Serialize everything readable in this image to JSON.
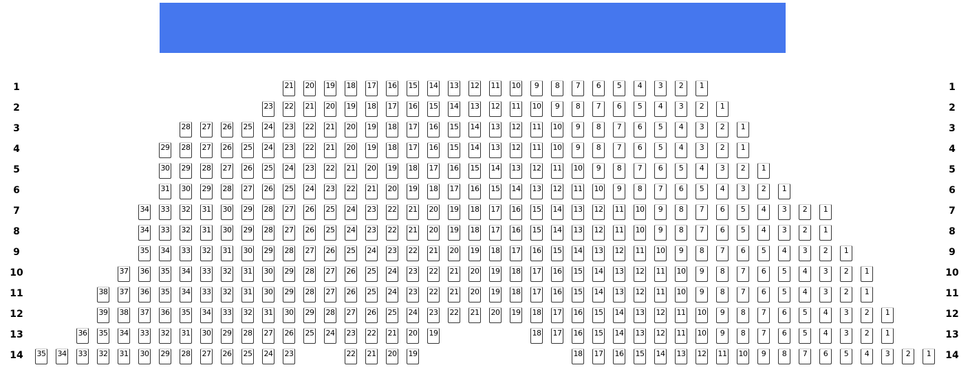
{
  "screen": {
    "color": "#4577ee"
  },
  "rows": [
    {
      "label": "1",
      "blocks": [
        [
          21,
          1
        ]
      ]
    },
    {
      "label": "2",
      "blocks": [
        [
          23,
          1
        ]
      ]
    },
    {
      "label": "3",
      "blocks": [
        [
          28,
          1
        ]
      ]
    },
    {
      "label": "4",
      "blocks": [
        [
          29,
          1
        ]
      ]
    },
    {
      "label": "5",
      "blocks": [
        [
          30,
          1
        ]
      ]
    },
    {
      "label": "6",
      "blocks": [
        [
          31,
          1
        ]
      ]
    },
    {
      "label": "7",
      "blocks": [
        [
          34,
          1
        ]
      ]
    },
    {
      "label": "8",
      "blocks": [
        [
          34,
          1
        ]
      ]
    },
    {
      "label": "9",
      "blocks": [
        [
          35,
          1
        ]
      ]
    },
    {
      "label": "10",
      "blocks": [
        [
          37,
          1
        ]
      ]
    },
    {
      "label": "11",
      "blocks": [
        [
          38,
          1
        ]
      ]
    },
    {
      "label": "12",
      "blocks": [
        [
          39,
          1
        ]
      ]
    },
    {
      "label": "13",
      "blocks": [
        [
          36,
          19
        ],
        [
          18,
          1
        ]
      ]
    },
    {
      "label": "14",
      "blocks": [
        [
          35,
          23
        ],
        [
          22,
          19
        ],
        [
          18,
          1
        ]
      ]
    }
  ]
}
